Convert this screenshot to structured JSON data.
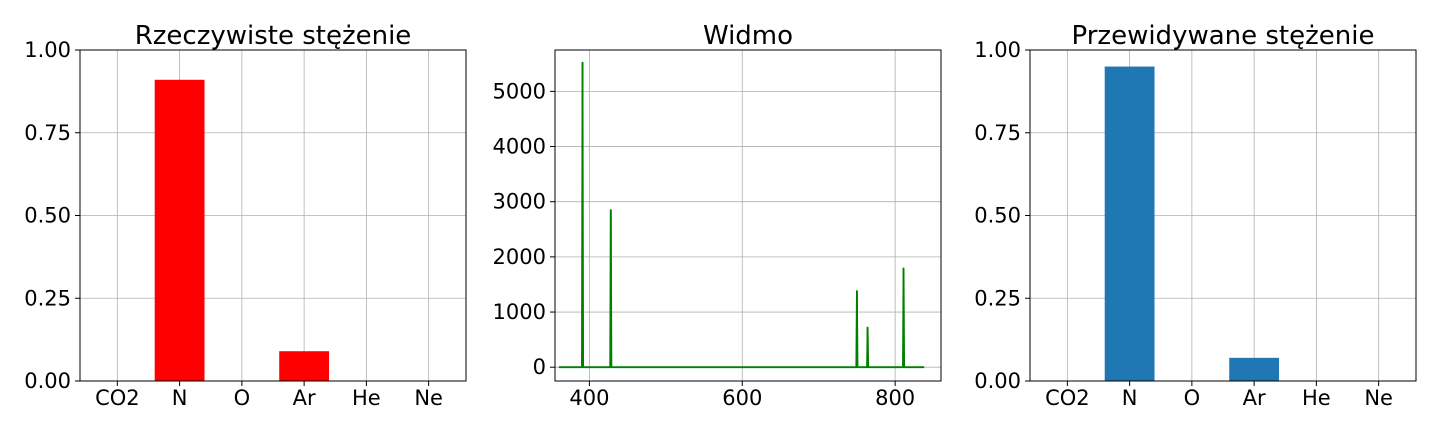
{
  "chart_data": [
    {
      "type": "bar",
      "title": "Rzeczywiste stężenie",
      "categories": [
        "CO2",
        "N",
        "O",
        "Ar",
        "He",
        "Ne"
      ],
      "values": [
        0.0,
        0.91,
        0.0,
        0.09,
        0.0,
        0.0
      ],
      "ylim": [
        0,
        1.0
      ],
      "yticks": [
        "0.00",
        "0.25",
        "0.50",
        "0.75",
        "1.00"
      ],
      "grid": true,
      "color": "#ff0000"
    },
    {
      "type": "line",
      "title": "Widmo",
      "xlim": [
        355,
        860
      ],
      "ylim": [
        -250,
        5750
      ],
      "xticks": [
        "400",
        "600",
        "800"
      ],
      "yticks": [
        "0",
        "1000",
        "2000",
        "3000",
        "4000",
        "5000"
      ],
      "grid": true,
      "color": "#008000",
      "baseline_x_range": [
        360,
        838
      ],
      "peaks": [
        {
          "x": 391,
          "y": 5520
        },
        {
          "x": 428,
          "y": 2850
        },
        {
          "x": 750,
          "y": 1380
        },
        {
          "x": 764,
          "y": 720
        },
        {
          "x": 811,
          "y": 1790
        }
      ]
    },
    {
      "type": "bar",
      "title": "Przewidywane stężenie",
      "categories": [
        "CO2",
        "N",
        "O",
        "Ar",
        "He",
        "Ne"
      ],
      "values": [
        0.0,
        0.95,
        0.0,
        0.07,
        0.0,
        0.0
      ],
      "ylim": [
        0,
        1.0
      ],
      "yticks": [
        "0.00",
        "0.25",
        "0.50",
        "0.75",
        "1.00"
      ],
      "grid": true,
      "color": "#1f77b4"
    }
  ]
}
